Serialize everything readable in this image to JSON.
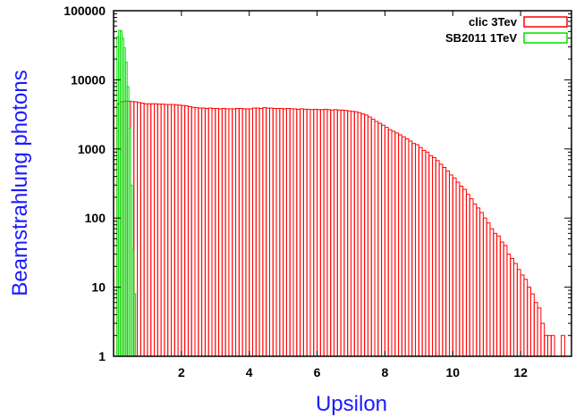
{
  "chart_data": {
    "type": "bar",
    "title": "",
    "xlabel": "Upsilon",
    "ylabel": "Beamstrahlung photons",
    "xlim": [
      0,
      13.5
    ],
    "ylim": [
      1,
      100000
    ],
    "yscale": "log",
    "grid": false,
    "legend_position": "top-right",
    "x_ticks": [
      2,
      4,
      6,
      8,
      10,
      12
    ],
    "x_tick_labels": [
      "2",
      "4",
      "6",
      "8",
      "10",
      "12"
    ],
    "y_ticks": [
      1,
      10,
      100,
      1000,
      10000,
      100000
    ],
    "y_tick_labels": [
      "1",
      "10",
      "100",
      "1000",
      "10000",
      "100000"
    ],
    "series": [
      {
        "name": "clic 3Tev",
        "color": "#ff0000",
        "bin_width": 0.1,
        "bin_start": 0.1,
        "values": [
          4500,
          4800,
          4900,
          4900,
          4850,
          4800,
          4700,
          4600,
          4500,
          4500,
          4500,
          4500,
          4450,
          4450,
          4400,
          4400,
          4400,
          4350,
          4300,
          4250,
          4200,
          4100,
          4000,
          3950,
          3900,
          3900,
          3850,
          3900,
          3850,
          3850,
          3800,
          3850,
          3800,
          3800,
          3800,
          3850,
          3850,
          3800,
          3800,
          3800,
          3900,
          3900,
          3850,
          3950,
          3900,
          3900,
          3850,
          3850,
          3850,
          3800,
          3850,
          3800,
          3800,
          3750,
          3800,
          3750,
          3750,
          3700,
          3750,
          3700,
          3700,
          3750,
          3700,
          3650,
          3700,
          3650,
          3650,
          3600,
          3550,
          3500,
          3450,
          3350,
          3200,
          3100,
          2900,
          2700,
          2500,
          2350,
          2200,
          2050,
          1900,
          1800,
          1700,
          1600,
          1500,
          1400,
          1300,
          1200,
          1150,
          1050,
          950,
          900,
          800,
          750,
          680,
          600,
          540,
          480,
          420,
          380,
          330,
          290,
          260,
          220,
          190,
          160,
          140,
          120,
          100,
          85,
          70,
          60,
          55,
          45,
          40,
          30,
          26,
          22,
          18,
          15,
          13,
          10,
          8,
          6,
          5,
          3,
          2,
          2,
          2,
          0,
          0,
          2
        ]
      },
      {
        "name": "SB2011 1TeV",
        "color": "#00dd00",
        "bin_width": 0.05,
        "bin_start": 0.1,
        "values": [
          42000,
          52000,
          51000,
          40000,
          29000,
          18000,
          8000,
          2000,
          300,
          35,
          8
        ]
      }
    ]
  }
}
